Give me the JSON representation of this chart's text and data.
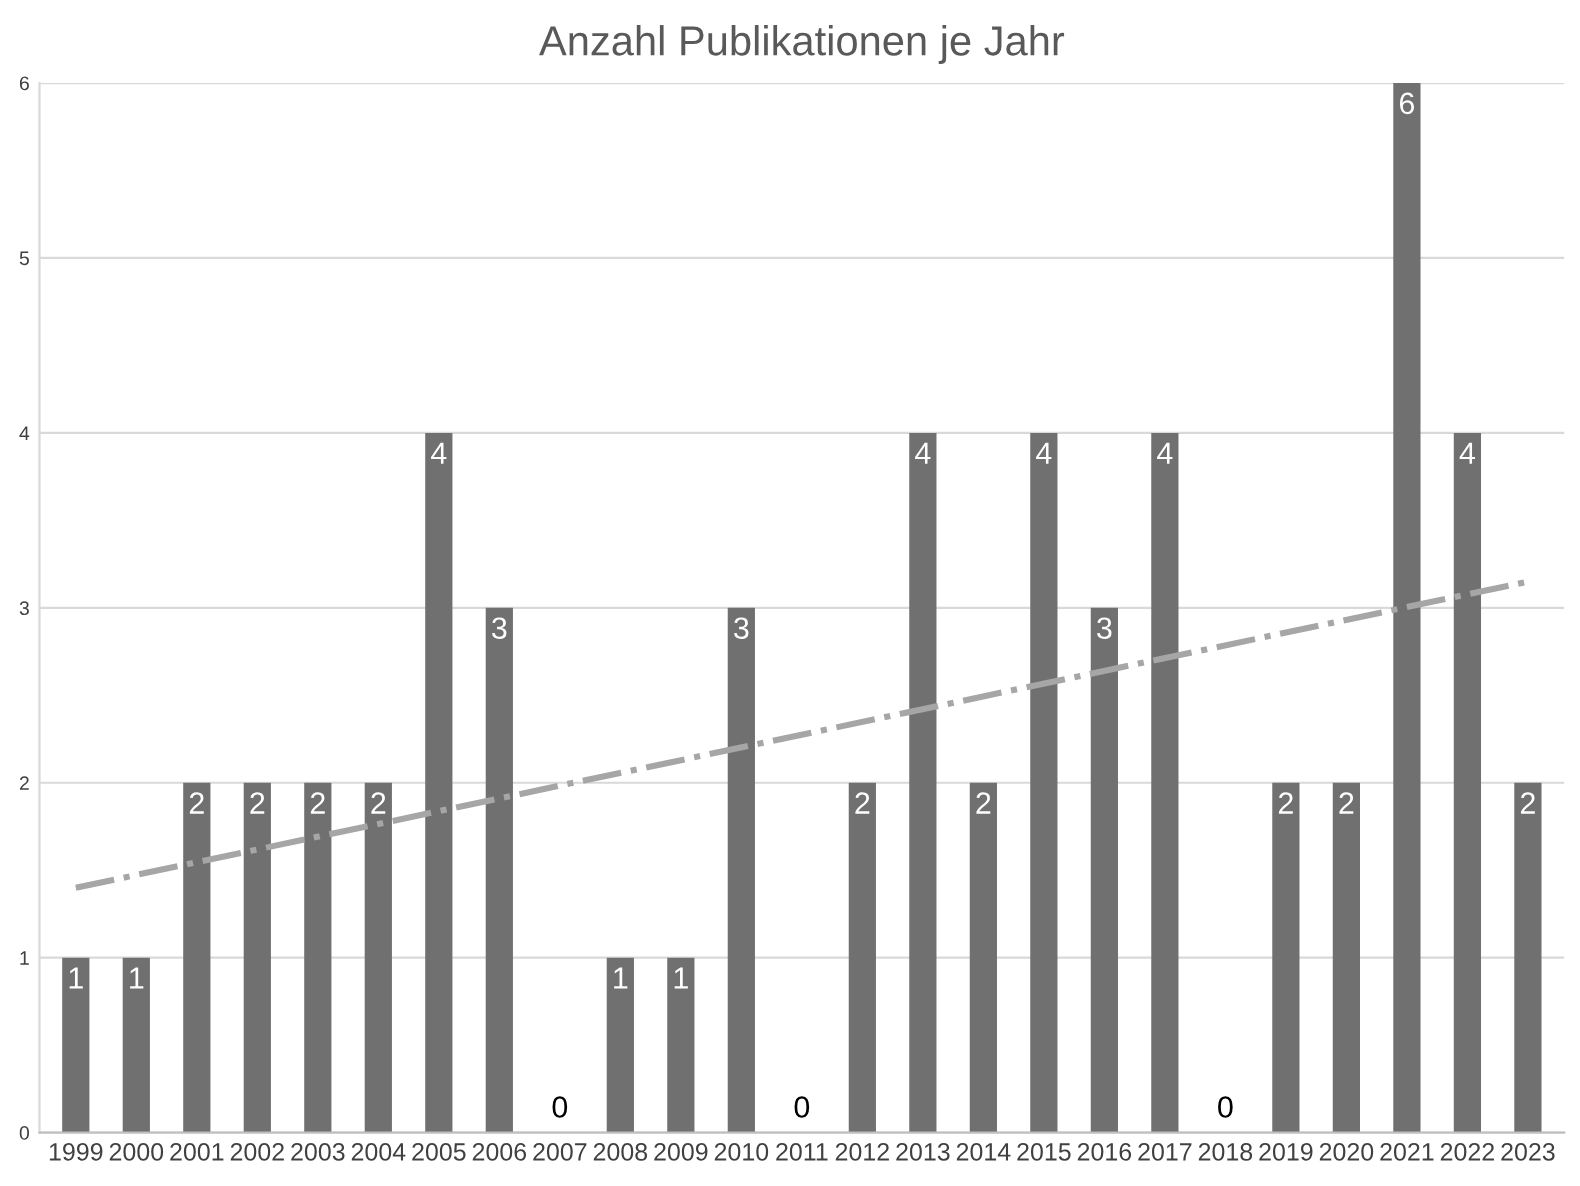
{
  "chart_data": {
    "type": "bar",
    "title": "Anzahl Publikationen je Jahr",
    "x": [
      1999,
      2000,
      2001,
      2002,
      2003,
      2004,
      2005,
      2006,
      2007,
      2008,
      2009,
      2010,
      2011,
      2012,
      2013,
      2014,
      2015,
      2016,
      2017,
      2018,
      2019,
      2020,
      2021,
      2022,
      2023
    ],
    "series": [
      {
        "color": "#707070",
        "values": [
          1,
          1,
          2,
          2,
          2,
          2,
          4,
          3,
          0,
          1,
          1,
          3,
          0,
          2,
          4,
          2,
          4,
          3,
          4,
          0,
          2,
          2,
          6,
          4,
          2
        ],
        "value_labels": [
          "1",
          "1",
          "2",
          "2",
          "2",
          "2",
          "4",
          "3",
          "0",
          "1",
          "1",
          "3",
          "0",
          "2",
          "4",
          "2",
          "4",
          "3",
          "4",
          "0",
          "2",
          "2",
          "6",
          "4",
          "2"
        ]
      },
      {
        "type": "line",
        "color": "#a6a6a6",
        "line_style": "dashdot",
        "x": [
          1999,
          2023
        ],
        "values": [
          1.4,
          3.15
        ]
      }
    ],
    "xlim": [
      1998.4,
      2023.6
    ],
    "xticks": [
      1999,
      2000,
      2001,
      2002,
      2003,
      2004,
      2005,
      2006,
      2007,
      2008,
      2009,
      2010,
      2011,
      2012,
      2013,
      2014,
      2015,
      2016,
      2017,
      2018,
      2019,
      2020,
      2021,
      2022,
      2023
    ],
    "ylim": [
      0,
      6
    ],
    "yticks": [
      0,
      1,
      2,
      3,
      4,
      5,
      6
    ],
    "grid": "y",
    "legend": false
  }
}
